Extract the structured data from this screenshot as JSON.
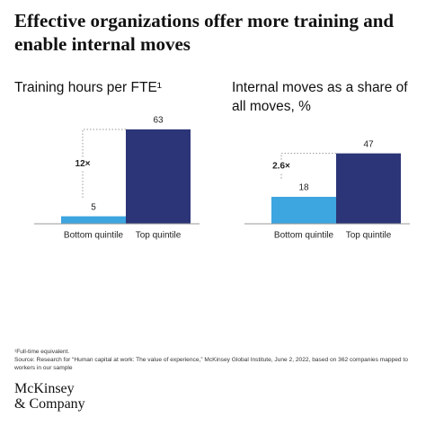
{
  "header": {
    "title": "Effective organizations offer more training and enable internal moves"
  },
  "chart_data": [
    {
      "type": "bar",
      "title": "Training hours per FTE¹",
      "categories": [
        "Bottom quintile",
        "Top quintile"
      ],
      "values": [
        5,
        63
      ],
      "colors": [
        "#3da5e0",
        "#2c3577"
      ],
      "annotation": "12×"
    },
    {
      "type": "bar",
      "title": "Internal moves as a share of all moves, %",
      "categories": [
        "Bottom quintile",
        "Top quintile"
      ],
      "values": [
        18,
        47
      ],
      "colors": [
        "#3da5e0",
        "#2c3577"
      ],
      "annotation": "2.6×"
    }
  ],
  "footnotes": [
    "¹Full-time equivalent.",
    "Source: Research for “Human capital at work: The value of experience,” McKinsey Global Institute, June 2, 2022, based on 362 companies mapped to workers in our sample"
  ],
  "logo": [
    "McKinsey",
    "& Company"
  ]
}
